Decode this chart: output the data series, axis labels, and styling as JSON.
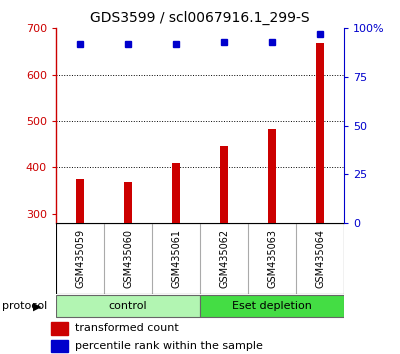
{
  "title": "GDS3599 / scl0067916.1_299-S",
  "samples": [
    "GSM435059",
    "GSM435060",
    "GSM435061",
    "GSM435062",
    "GSM435063",
    "GSM435064"
  ],
  "bar_values": [
    375,
    368,
    410,
    447,
    482,
    668
  ],
  "percentile_values": [
    92,
    92,
    92,
    93,
    93,
    97
  ],
  "group_labels": [
    "control",
    "Eset depletion"
  ],
  "group_colors": [
    "#b2f5b2",
    "#44dd44"
  ],
  "bar_color": "#cc0000",
  "dot_color": "#0000cc",
  "ylim_left": [
    280,
    700
  ],
  "ylim_right": [
    0,
    100
  ],
  "yticks_left": [
    300,
    400,
    500,
    600,
    700
  ],
  "yticks_right": [
    0,
    25,
    50,
    75,
    100
  ],
  "grid_values": [
    400,
    500,
    600
  ],
  "ylabel_left_color": "#cc0000",
  "ylabel_right_color": "#0000cc",
  "title_fontsize": 10,
  "tick_fontsize": 8,
  "legend_fontsize": 8,
  "bar_width": 0.18
}
